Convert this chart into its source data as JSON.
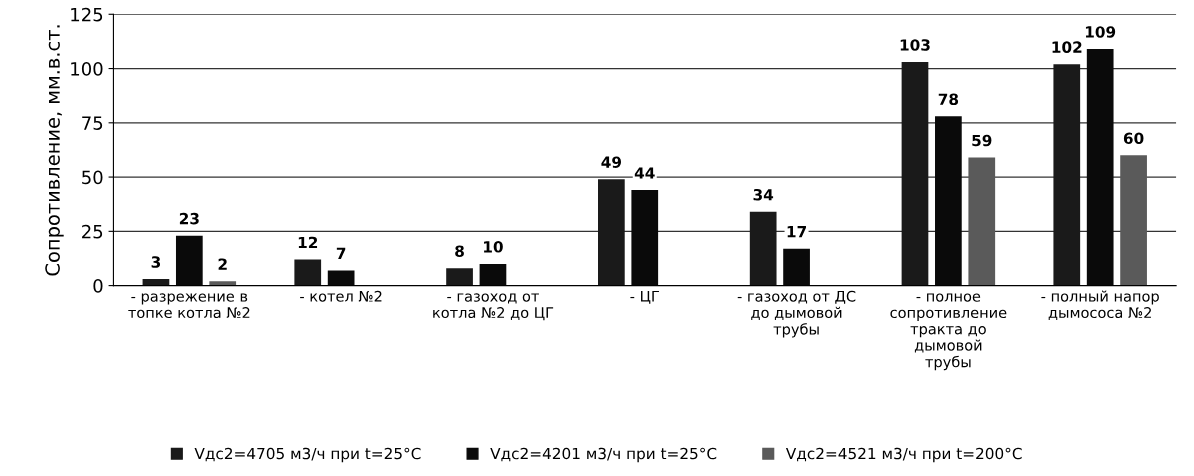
{
  "chart_data": {
    "type": "bar",
    "ylabel": "Сопротивление, мм.в.ст.",
    "categories": [
      "- разрежение в\nтопке котла №2",
      "- котел №2",
      "- газоход от\nкотла №2 до ЦГ",
      "- ЦГ",
      "- газоход от ДС\nдо дымовой\nтрубы",
      "- полное\nсопротивление\nтракта до\nдымовой\nтрубы",
      "- полный напор\nдымососа №2"
    ],
    "series": [
      {
        "name": "Vдс2=4705 м3/ч при t=25°C",
        "color": "#1a1a1a",
        "values": [
          3,
          12,
          8,
          49,
          34,
          103,
          102
        ]
      },
      {
        "name": "Vдс2=4201 м3/ч при t=25°C",
        "color": "#0a0a0a",
        "values": [
          23,
          7,
          10,
          44,
          17,
          78,
          109
        ]
      },
      {
        "name": "Vдс2=4521 м3/ч при t=200°C",
        "color": "#5a5a5a",
        "values": [
          2,
          null,
          null,
          null,
          null,
          59,
          60
        ]
      }
    ],
    "ylim": [
      0,
      125
    ],
    "yticks": [
      0,
      25,
      50,
      75,
      100,
      125
    ],
    "grid": "y",
    "legend": "bottom",
    "data_labels": true
  }
}
